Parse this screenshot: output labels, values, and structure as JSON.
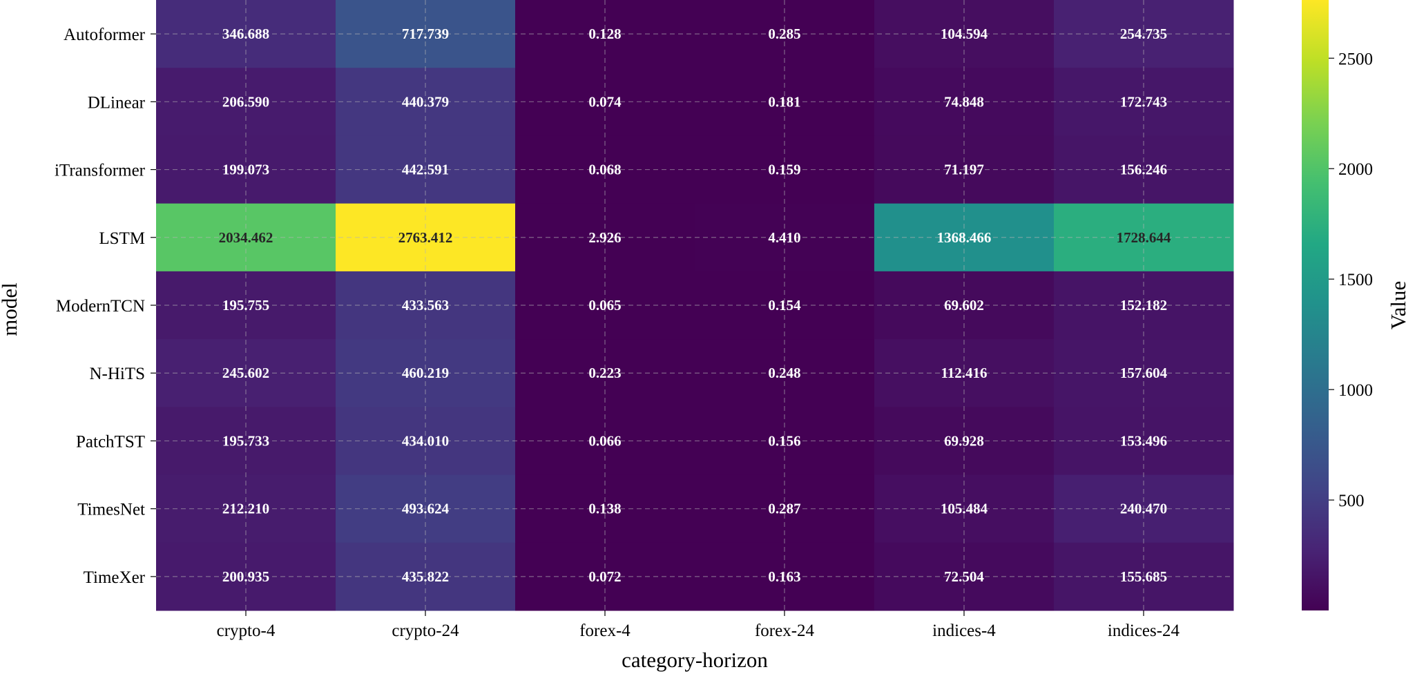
{
  "chart_data": {
    "type": "heatmap",
    "xlabel": "category-horizon",
    "ylabel": "model",
    "colorbar_label": "Value",
    "colormap": "viridis",
    "vmin": 0.065,
    "vmax": 2763.412,
    "colorbar_ticks": [
      500,
      1000,
      1500,
      2000,
      2500
    ],
    "grid": true,
    "columns": [
      "crypto-4",
      "crypto-24",
      "forex-4",
      "forex-24",
      "indices-4",
      "indices-24"
    ],
    "rows": [
      "Autoformer",
      "DLinear",
      "iTransformer",
      "LSTM",
      "ModernTCN",
      "N-HiTS",
      "PatchTST",
      "TimesNet",
      "TimeXer"
    ],
    "values": [
      [
        346.688,
        717.739,
        0.128,
        0.285,
        104.594,
        254.735
      ],
      [
        206.59,
        440.379,
        0.074,
        0.181,
        74.848,
        172.743
      ],
      [
        199.073,
        442.591,
        0.068,
        0.159,
        71.197,
        156.246
      ],
      [
        2034.462,
        2763.412,
        2.926,
        4.41,
        1368.466,
        1728.644
      ],
      [
        195.755,
        433.563,
        0.065,
        0.154,
        69.602,
        152.182
      ],
      [
        245.602,
        460.219,
        0.223,
        0.248,
        112.416,
        157.604
      ],
      [
        195.733,
        434.01,
        0.066,
        0.156,
        69.928,
        153.496
      ],
      [
        212.21,
        493.624,
        0.138,
        0.287,
        105.484,
        240.47
      ],
      [
        200.935,
        435.822,
        0.072,
        0.163,
        72.504,
        155.685
      ]
    ],
    "value_labels": [
      [
        "346.688",
        "717.739",
        "0.128",
        "0.285",
        "104.594",
        "254.735"
      ],
      [
        "206.590",
        "440.379",
        "0.074",
        "0.181",
        "74.848",
        "172.743"
      ],
      [
        "199.073",
        "442.591",
        "0.068",
        "0.159",
        "71.197",
        "156.246"
      ],
      [
        "2034.462",
        "2763.412",
        "2.926",
        "4.410",
        "1368.466",
        "1728.644"
      ],
      [
        "195.755",
        "433.563",
        "0.065",
        "0.154",
        "69.602",
        "152.182"
      ],
      [
        "245.602",
        "460.219",
        "0.223",
        "0.248",
        "112.416",
        "157.604"
      ],
      [
        "195.733",
        "434.010",
        "0.066",
        "0.156",
        "69.928",
        "153.496"
      ],
      [
        "212.210",
        "493.624",
        "0.138",
        "0.287",
        "105.484",
        "240.470"
      ],
      [
        "200.935",
        "435.822",
        "0.072",
        "0.163",
        "72.504",
        "155.685"
      ]
    ]
  }
}
